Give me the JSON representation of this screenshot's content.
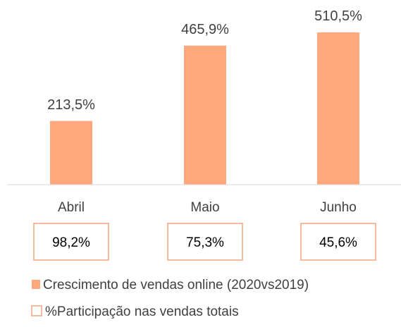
{
  "chart_data": {
    "type": "bar",
    "categories": [
      "Abril",
      "Maio",
      "Junho"
    ],
    "series": [
      {
        "name": "Crescimento de vendas online (2020vs2019)",
        "color": "#ffa77d",
        "values": [
          213.5,
          465.9,
          510.5
        ],
        "value_labels": [
          "213,5%",
          "465,9%",
          "510,5%"
        ]
      },
      {
        "name": "%Participação nas vendas totais",
        "color": "#f4a47c",
        "values": [
          98.2,
          75.3,
          45.6
        ],
        "value_labels": [
          "98,2%",
          "75,3%",
          "45,6%"
        ]
      }
    ],
    "ylim": [
      0,
      600
    ]
  }
}
